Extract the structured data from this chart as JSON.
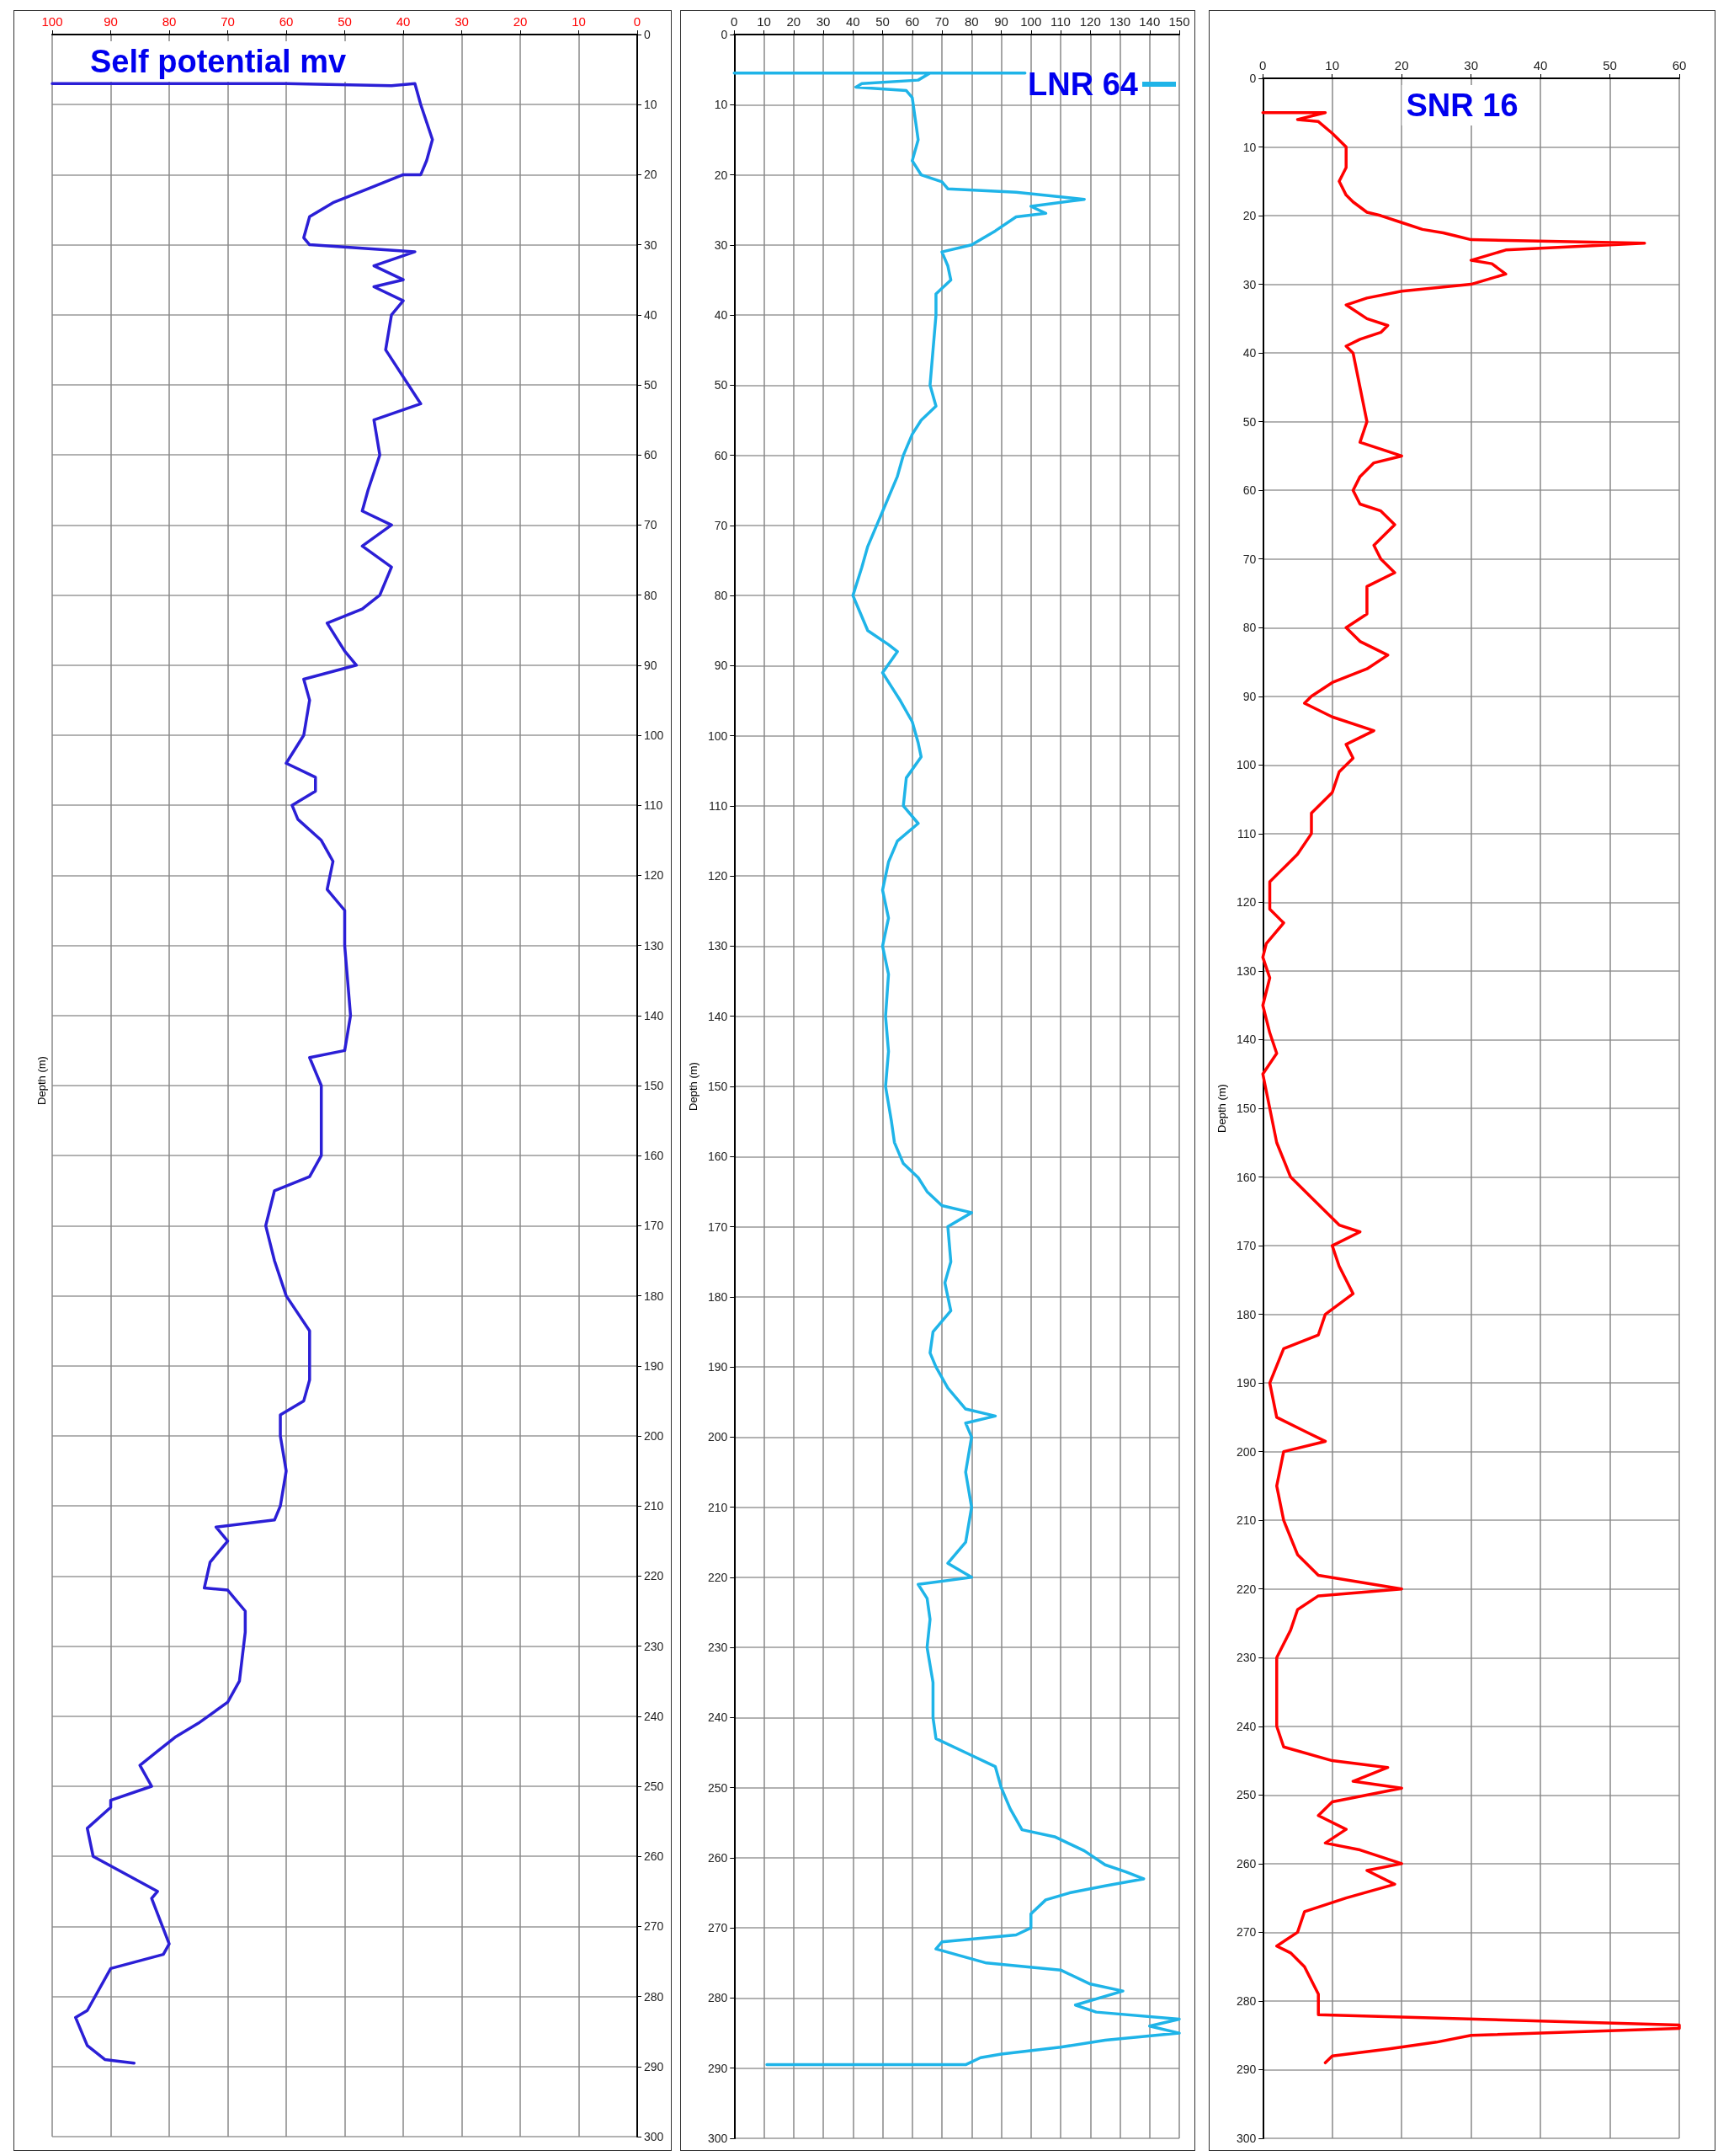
{
  "chart_data": [
    {
      "type": "line",
      "title": "Self potential mv",
      "ylabel": "Depth (m)",
      "xlim": [
        100,
        0
      ],
      "xticks": [
        100,
        90,
        80,
        70,
        60,
        50,
        40,
        30,
        20,
        10,
        0
      ],
      "ylim": [
        300,
        0
      ],
      "yticks": [
        0,
        10,
        20,
        30,
        40,
        50,
        60,
        70,
        80,
        90,
        100,
        110,
        120,
        130,
        140,
        150,
        160,
        170,
        180,
        190,
        200,
        210,
        220,
        230,
        240,
        250,
        260,
        270,
        280,
        290,
        300
      ],
      "grid": true,
      "legend": false,
      "marker": "none",
      "line_style": "solid",
      "series": [
        {
          "color": "#2b1fd6",
          "x": [
            100,
            60,
            42,
            38,
            37,
            35,
            36,
            37,
            40,
            46,
            52,
            56,
            57,
            56,
            38,
            45,
            40,
            45,
            40,
            42,
            43,
            37,
            45,
            44,
            46,
            47,
            42,
            47,
            42,
            44,
            47,
            53,
            50,
            48,
            57,
            56,
            57,
            60,
            55,
            55,
            59,
            58,
            54,
            52,
            53,
            50,
            50,
            49,
            50,
            56,
            54,
            54,
            56,
            62,
            63.5,
            62,
            60,
            56,
            56,
            57,
            61,
            61,
            60,
            61,
            62,
            72,
            70,
            73,
            74,
            70,
            67,
            67,
            68,
            70,
            75,
            79,
            82,
            85,
            83,
            90,
            90,
            94,
            93,
            82,
            83,
            80,
            81,
            90,
            94,
            96,
            94,
            91,
            86
          ],
          "values": [
            7,
            7,
            7.3,
            7,
            10,
            15,
            18,
            20,
            20,
            22,
            24,
            26,
            29,
            30,
            31,
            33,
            35,
            36,
            38,
            40,
            45,
            52.7,
            55,
            60,
            65,
            68,
            70,
            73,
            76,
            80,
            82,
            84,
            88,
            90,
            92,
            95,
            100,
            104,
            106,
            108,
            110,
            112,
            115,
            118,
            122,
            125,
            130,
            140,
            145,
            146,
            150,
            160,
            163,
            165,
            170,
            175,
            180,
            185,
            192,
            195,
            197,
            200,
            205,
            210,
            212,
            213,
            215,
            218,
            221.7,
            222,
            225,
            228,
            235,
            238,
            241,
            243,
            245,
            247,
            250,
            252,
            253,
            256,
            260,
            265,
            266,
            272.5,
            274,
            276,
            282,
            283,
            287,
            289,
            289.5
          ]
        }
      ]
    },
    {
      "type": "line",
      "ylabel": "Depth (m)",
      "xlim": [
        0,
        150
      ],
      "xticks": [
        0,
        10,
        20,
        30,
        40,
        50,
        60,
        70,
        80,
        90,
        100,
        110,
        120,
        130,
        140,
        150
      ],
      "ylim": [
        300,
        0
      ],
      "yticks": [
        0,
        10,
        20,
        30,
        40,
        50,
        60,
        70,
        80,
        90,
        100,
        110,
        120,
        130,
        140,
        150,
        160,
        170,
        180,
        190,
        200,
        210,
        220,
        230,
        240,
        250,
        260,
        270,
        280,
        290,
        300
      ],
      "grid": true,
      "legend": "top right",
      "marker": "none",
      "line_style": "solid",
      "series": [
        {
          "name": "LNR 64",
          "color": "#1fb4e8",
          "x": [
            0,
            98,
            66,
            62,
            43,
            41,
            58,
            60,
            61,
            62,
            60,
            63,
            70,
            72,
            95,
            118,
            100,
            105,
            95,
            88,
            80,
            70,
            72,
            73,
            68,
            68,
            67,
            66,
            68,
            63,
            60,
            57,
            55,
            52,
            50,
            48,
            45,
            43,
            40,
            42,
            45,
            52,
            55,
            50,
            53,
            56,
            60,
            62,
            63,
            58,
            57,
            62,
            55,
            52,
            50,
            52,
            50,
            52,
            51,
            52,
            51,
            53,
            54,
            57,
            62,
            65,
            70,
            80,
            72,
            73,
            71,
            72,
            73,
            67,
            66,
            68,
            72,
            78,
            88,
            78,
            80,
            78,
            80,
            78,
            72,
            80,
            62,
            65,
            66,
            65,
            67,
            67,
            68,
            78,
            88,
            90,
            93,
            97,
            108,
            118,
            125,
            132,
            138,
            125,
            113,
            105,
            100,
            100,
            95,
            70,
            68,
            85,
            110,
            120,
            131,
            115,
            122,
            150,
            140,
            150,
            125,
            110,
            90,
            83,
            78,
            11
          ],
          "values": [
            5.5,
            5.5,
            5.5,
            6.5,
            7,
            7.5,
            8,
            9,
            12,
            15,
            18,
            20,
            21,
            22,
            22.5,
            23.5,
            24.5,
            25.5,
            26,
            28,
            30,
            31,
            33,
            35,
            37,
            40,
            45,
            50,
            53,
            55,
            57,
            60,
            63,
            66,
            68,
            70,
            73,
            76,
            80,
            82,
            85,
            87,
            88,
            91,
            93,
            95,
            98,
            101,
            103,
            106,
            110,
            112.5,
            115,
            118,
            122,
            126,
            130,
            134,
            140,
            145,
            150,
            155,
            158,
            161,
            163,
            165,
            167,
            168,
            170,
            175,
            178,
            180,
            182,
            185,
            188,
            190,
            193,
            196,
            197,
            198,
            200,
            205,
            210,
            215,
            218,
            220,
            221,
            223,
            226,
            230,
            235,
            240,
            243,
            245,
            247,
            250,
            253,
            256,
            257,
            259,
            261,
            262,
            263,
            264,
            265,
            266,
            268,
            270,
            271,
            272,
            273,
            275,
            276,
            278,
            279,
            281,
            282,
            283,
            284,
            285,
            286,
            287,
            288,
            288.5,
            289.5,
            289.5
          ]
        }
      ]
    },
    {
      "type": "line",
      "title": "SNR 16",
      "ylabel": "Depth (m)",
      "xlim": [
        0,
        60
      ],
      "xticks": [
        0,
        10,
        20,
        30,
        40,
        50,
        60
      ],
      "ylim": [
        300,
        0
      ],
      "yticks": [
        0,
        10,
        20,
        30,
        40,
        50,
        60,
        70,
        80,
        90,
        100,
        110,
        120,
        130,
        140,
        150,
        160,
        170,
        180,
        190,
        200,
        210,
        220,
        230,
        240,
        250,
        260,
        270,
        280,
        290,
        300
      ],
      "grid": true,
      "legend": false,
      "marker": "none",
      "line_style": "solid",
      "series": [
        {
          "color": "#ff0000",
          "x": [
            0,
            9,
            5,
            8,
            10,
            12,
            12,
            11,
            12,
            13,
            15,
            17,
            20,
            23,
            26,
            28,
            30,
            55,
            35,
            30,
            33,
            35,
            30,
            20,
            15,
            12,
            15,
            18,
            17,
            14,
            12,
            13,
            14,
            15,
            14,
            20,
            16,
            14,
            13,
            14,
            17,
            19,
            16,
            17,
            19,
            15,
            15,
            12,
            14,
            18,
            15,
            10,
            7,
            6,
            10,
            16,
            12,
            13,
            11,
            10,
            7,
            7,
            5,
            3,
            1,
            1,
            3,
            0.5,
            0,
            1,
            0,
            1,
            2,
            0,
            1,
            2,
            4,
            7,
            11,
            14,
            10,
            11,
            13,
            9,
            8,
            3,
            1,
            2,
            6,
            9,
            3,
            2,
            3,
            5,
            8,
            20,
            8,
            5,
            4,
            2,
            2,
            3,
            10,
            18,
            13,
            20,
            10,
            8,
            12,
            9,
            14,
            20,
            15,
            19,
            12,
            6,
            5,
            2,
            4,
            6,
            8,
            8,
            60,
            60,
            30,
            25,
            18,
            10,
            9
          ],
          "values": [
            5,
            5,
            6,
            6.3,
            8,
            10,
            13,
            15,
            17,
            18,
            19.5,
            20,
            21,
            22,
            22.5,
            23,
            23.5,
            24,
            25,
            26.5,
            27,
            28.5,
            30,
            31,
            32,
            33,
            35,
            36,
            37,
            38,
            39,
            40,
            45,
            50,
            53,
            55,
            56,
            58,
            60,
            62,
            63,
            65,
            68,
            70,
            72,
            74,
            78,
            80,
            82,
            84,
            86,
            88,
            90,
            91,
            93,
            95,
            97,
            99,
            101,
            104,
            107,
            110,
            113,
            115,
            117,
            121,
            123,
            126,
            128,
            131,
            135,
            139,
            142,
            145,
            150,
            155,
            160,
            163,
            167,
            168,
            170,
            173,
            177,
            180,
            183,
            185,
            190,
            195,
            197,
            198.5,
            200,
            205,
            210,
            215,
            218,
            220,
            221,
            223,
            226,
            230,
            240,
            243,
            245,
            246,
            248,
            249,
            251,
            253,
            255,
            257,
            258,
            260,
            261,
            263,
            265,
            267,
            270,
            272,
            273,
            275,
            279,
            282,
            283.5,
            284,
            285,
            286,
            287,
            288,
            289
          ]
        }
      ]
    }
  ]
}
